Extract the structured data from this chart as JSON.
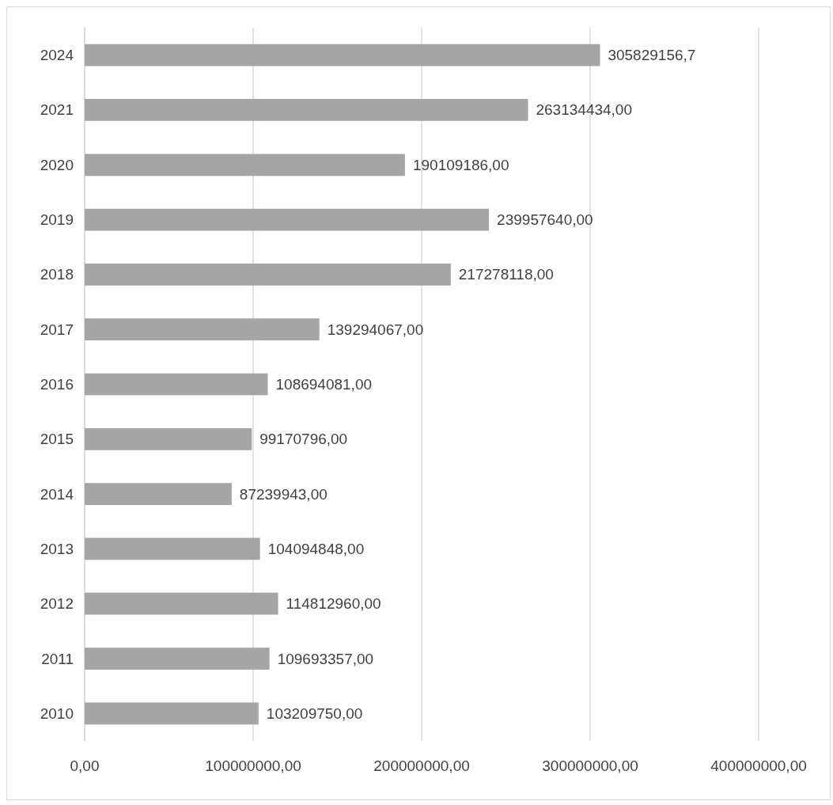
{
  "chart_data": {
    "type": "bar",
    "orientation": "horizontal",
    "categories": [
      "2024",
      "2021",
      "2020",
      "2019",
      "2018",
      "2017",
      "2016",
      "2015",
      "2014",
      "2013",
      "2012",
      "2011",
      "2010"
    ],
    "values": [
      305829156.7,
      263134434,
      190109186,
      239957640,
      217278118,
      139294067,
      108694081,
      99170796,
      87239943,
      104094848,
      114812960,
      109693357,
      103209750
    ],
    "value_labels": [
      "305829156,7",
      "263134434,00",
      "190109186,00",
      "239957640,00",
      "217278118,00",
      "139294067,00",
      "108694081,00",
      "99170796,00",
      "87239943,00",
      "104094848,00",
      "114812960,00",
      "109693357,00",
      "103209750,00"
    ],
    "color": "#a5a5a5",
    "xlim": [
      0,
      400000000
    ],
    "xticks": [
      {
        "value": 0,
        "label": "0,00"
      },
      {
        "value": 100000000,
        "label": "100000000,00"
      },
      {
        "value": 200000000,
        "label": "200000000,00"
      },
      {
        "value": 300000000,
        "label": "300000000,00"
      },
      {
        "value": 400000000,
        "label": "400000000,00"
      }
    ],
    "grid": "x"
  }
}
